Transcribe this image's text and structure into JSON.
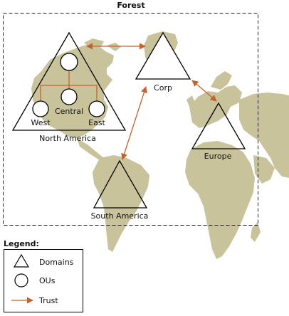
{
  "forest_title": "Forest",
  "domains": {
    "north_america": {
      "label": "North America"
    },
    "corp": {
      "label": "Corp"
    },
    "europe": {
      "label": "Europe"
    },
    "south_america": {
      "label": "South America"
    }
  },
  "ous": {
    "root": {
      "label": ""
    },
    "central": {
      "label": "Central"
    },
    "west": {
      "label": "West"
    },
    "east": {
      "label": "East"
    }
  },
  "legend": {
    "title": "Legend:",
    "items": [
      {
        "icon": "triangle-icon",
        "label": "Domains"
      },
      {
        "icon": "circle-icon",
        "label": "OUs"
      },
      {
        "icon": "arrow-icon",
        "label": "Trust"
      }
    ]
  },
  "colors": {
    "map_land": "#C9C39B",
    "trust_arrow": "#C4622D",
    "ou_link": "#C4622D",
    "forest_border": "#222222",
    "shape_stroke": "#000000"
  }
}
